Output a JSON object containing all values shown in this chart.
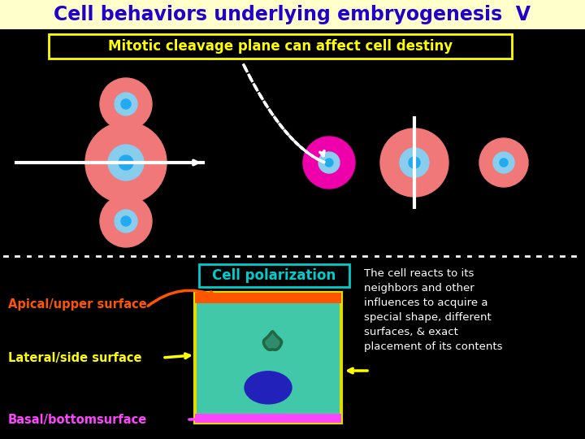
{
  "title": "Cell behaviors underlying embryogenesis  V",
  "title_color": "#2200CC",
  "title_bg": "#FFFFCC",
  "bg_color": "#000000",
  "subtitle": "Mitotic cleavage plane can affect cell destiny",
  "subtitle_color": "#FFFF00",
  "subtitle_border": "#FFFF00",
  "section2_title": "Cell polarization",
  "section2_title_color": "#00CCCC",
  "section2_title_border": "#00CCCC",
  "description_text": "The cell reacts to its\nneighbors and other\ninfluences to acquire a\nspecial shape, different\nsurfaces, & exact\nplacement of its contents",
  "description_color": "#FFFFFF",
  "label1": "Apical/upper surface",
  "label1_color": "#FF5500",
  "label2": "Lateral/side surface",
  "label2_color": "#FFFF00",
  "label3": "Basal/bottomsurface",
  "label3_color": "#FF44FF",
  "cell_teal": "#40C8A8",
  "cell_border_yellow": "#DDDD00",
  "cell_top_orange": "#FF5500",
  "cell_bottom_magenta": "#FF44FF",
  "nucleus_color": "#2222BB",
  "organelle_color": "#226644",
  "pink_outer": "#F07878",
  "blue_mid": "#88CCEE",
  "blue_inner": "#22AAEE",
  "magenta_cell": "#EE00AA",
  "white": "#FFFFFF"
}
